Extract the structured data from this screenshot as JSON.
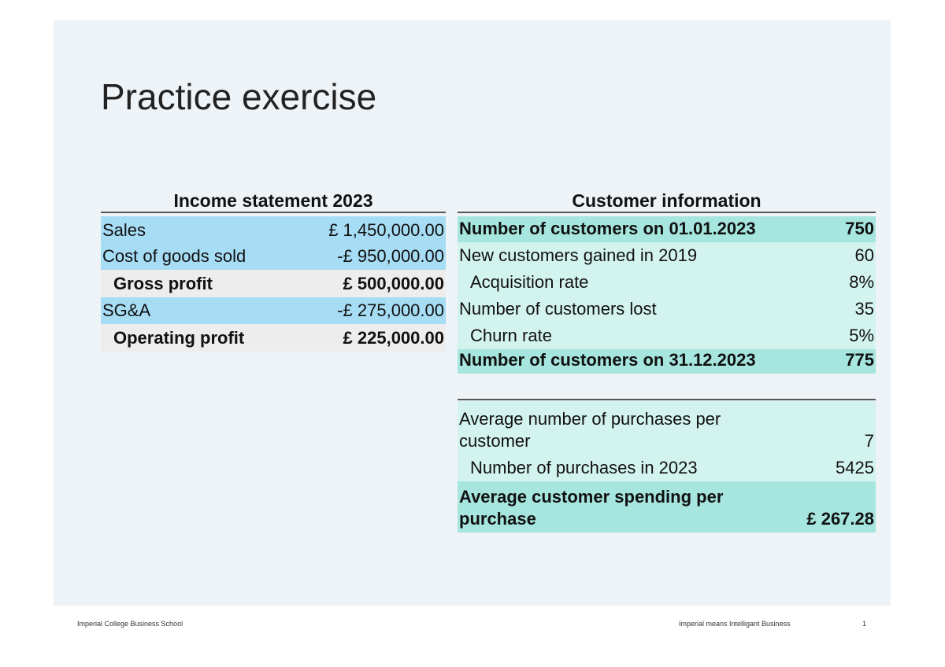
{
  "header": {
    "title": "Practice exercise"
  },
  "income_statement": {
    "title": "Income statement 2023",
    "rows": [
      [
        "Sales",
        "£ 1,450,000.00"
      ],
      [
        "Cost of goods sold",
        "-£ 950,000.00"
      ],
      [
        "Gross profit",
        "£ 500,000.00"
      ],
      [
        "SG&A",
        "-£ 275,000.00"
      ],
      [
        "Operating profit",
        "£ 225,000.00"
      ]
    ]
  },
  "customer_information": {
    "title": "Customer information",
    "rows": [
      [
        "Number of customers on 01.01.2023",
        "750"
      ],
      [
        "New customers gained in 2019",
        "60"
      ],
      [
        "Acquisition rate",
        "8%"
      ],
      [
        "Number of customers lost",
        "35"
      ],
      [
        "Churn rate",
        "5%"
      ],
      [
        "Number of customers on 31.12.2023",
        "775"
      ]
    ],
    "purchase_rows": [
      [
        "Average number of purchases per customer",
        "7"
      ],
      [
        "Number of purchases in 2023",
        "5425"
      ],
      [
        "Average customer spending per purchase",
        "£ 267.28"
      ]
    ]
  },
  "footer": {
    "left": "Imperial College Business School",
    "right": "Imperial means Intelligant Business",
    "page": "1"
  }
}
